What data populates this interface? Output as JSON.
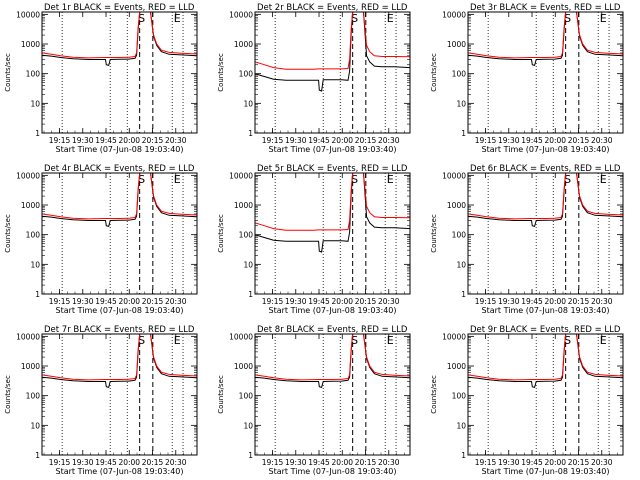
{
  "chart_data": [
    {
      "title": "Det 1r BLACK = Events, RED = LLD",
      "profile": "a"
    },
    {
      "title": "Det 2r BLACK = Events, RED = LLD",
      "profile": "b"
    },
    {
      "title": "Det 3r BLACK = Events, RED = LLD",
      "profile": "a"
    },
    {
      "title": "Det 4r BLACK = Events, RED = LLD",
      "profile": "a"
    },
    {
      "title": "Det 5r BLACK = Events, RED = LLD",
      "profile": "b"
    },
    {
      "title": "Det 6r BLACK = Events, RED = LLD",
      "profile": "a"
    },
    {
      "title": "Det 7r BLACK = Events, RED = LLD",
      "profile": "a"
    },
    {
      "title": "Det 8r BLACK = Events, RED = LLD",
      "profile": "a"
    },
    {
      "title": "Det 9r BLACK = Events, RED = LLD",
      "profile": "a"
    }
  ],
  "shared": {
    "type": "line",
    "ylabel": "Counts/sec",
    "xlabel": "Start Time (07-Jun-08 19:03:40)",
    "yscale": "log",
    "ylim": [
      1,
      12000
    ],
    "xlim_minutes": [
      0,
      100
    ],
    "y_ticks": [
      {
        "v": 1,
        "label": "1"
      },
      {
        "v": 10,
        "label": "10"
      },
      {
        "v": 100,
        "label": "100"
      },
      {
        "v": 1000,
        "label": "1000"
      },
      {
        "v": 10000,
        "label": "10000"
      }
    ],
    "x_ticks": [
      {
        "m": 11.3,
        "label": "19:15"
      },
      {
        "m": 26.3,
        "label": "19:30"
      },
      {
        "m": 41.3,
        "label": "19:45"
      },
      {
        "m": 56.3,
        "label": "20:00"
      },
      {
        "m": 71.3,
        "label": "20:15"
      },
      {
        "m": 86.3,
        "label": "20:30"
      }
    ],
    "dotted_lines_minutes": [
      13,
      44,
      55,
      84,
      91
    ],
    "dashed_lines_minutes": [
      63,
      71.5
    ],
    "markers": [
      {
        "m": 62,
        "text": "S"
      },
      {
        "m": 85,
        "text": "E"
      }
    ],
    "colors": {
      "events": "#000000",
      "lld": "#ff0000",
      "axes": "#000000"
    },
    "series_profiles": {
      "a": {
        "events": [
          [
            0,
            420
          ],
          [
            6,
            390
          ],
          [
            12,
            350
          ],
          [
            20,
            320
          ],
          [
            30,
            300
          ],
          [
            38,
            300
          ],
          [
            41,
            300
          ],
          [
            41.5,
            200
          ],
          [
            43,
            190
          ],
          [
            44,
            300
          ],
          [
            50,
            305
          ],
          [
            56,
            310
          ],
          [
            60,
            330
          ],
          [
            61,
            420
          ],
          [
            62,
            3000
          ],
          [
            63,
            12000
          ],
          [
            70,
            12000
          ],
          [
            72,
            1800
          ],
          [
            74,
            900
          ],
          [
            77,
            550
          ],
          [
            82,
            450
          ],
          [
            90,
            430
          ],
          [
            100,
            400
          ]
        ],
        "lld": [
          [
            0,
            500
          ],
          [
            6,
            450
          ],
          [
            12,
            400
          ],
          [
            20,
            360
          ],
          [
            30,
            340
          ],
          [
            41,
            350
          ],
          [
            44,
            350
          ],
          [
            50,
            350
          ],
          [
            56,
            360
          ],
          [
            60,
            380
          ],
          [
            61,
            500
          ],
          [
            62,
            3500
          ],
          [
            63,
            12000
          ],
          [
            70,
            12000
          ],
          [
            72,
            2000
          ],
          [
            74,
            1000
          ],
          [
            77,
            620
          ],
          [
            82,
            520
          ],
          [
            90,
            490
          ],
          [
            100,
            460
          ]
        ]
      },
      "b": {
        "events": [
          [
            0,
            100
          ],
          [
            6,
            80
          ],
          [
            12,
            65
          ],
          [
            20,
            60
          ],
          [
            30,
            60
          ],
          [
            38,
            60
          ],
          [
            41,
            60
          ],
          [
            41.5,
            28
          ],
          [
            43,
            26
          ],
          [
            44,
            62
          ],
          [
            50,
            62
          ],
          [
            56,
            62
          ],
          [
            60,
            60
          ],
          [
            61,
            120
          ],
          [
            62,
            2000
          ],
          [
            63,
            12000
          ],
          [
            70,
            12000
          ],
          [
            72,
            400
          ],
          [
            74,
            250
          ],
          [
            77,
            180
          ],
          [
            82,
            170
          ],
          [
            90,
            170
          ],
          [
            100,
            160
          ]
        ],
        "lld": [
          [
            0,
            250
          ],
          [
            6,
            200
          ],
          [
            12,
            160
          ],
          [
            20,
            140
          ],
          [
            30,
            140
          ],
          [
            38,
            140
          ],
          [
            41,
            145
          ],
          [
            44,
            145
          ],
          [
            50,
            145
          ],
          [
            56,
            145
          ],
          [
            60,
            150
          ],
          [
            61,
            300
          ],
          [
            62,
            3000
          ],
          [
            63,
            12000
          ],
          [
            70,
            12000
          ],
          [
            72,
            900
          ],
          [
            74,
            550
          ],
          [
            77,
            400
          ],
          [
            82,
            380
          ],
          [
            90,
            380
          ],
          [
            100,
            370
          ]
        ]
      }
    }
  }
}
